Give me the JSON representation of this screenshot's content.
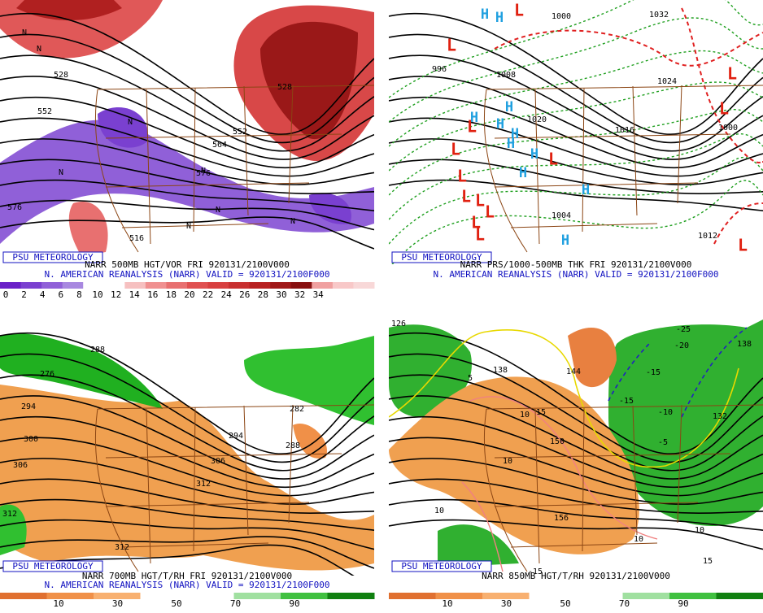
{
  "panels": [
    {
      "badge": "PSU METEOROLOGY",
      "caption": "NARR 500MB HGT/VOR FRI 920131/2100V000",
      "subcaption": "N. AMERICAN REANALYSIS (NARR) VALID = 920131/2100F000",
      "colorbar": [
        0,
        2,
        4,
        6,
        8,
        10,
        12,
        14,
        16,
        18,
        20,
        22,
        24,
        26,
        28,
        30,
        32,
        34
      ],
      "labels": [
        "528",
        "552",
        "528",
        "552",
        "564",
        "576",
        "576",
        "516",
        "N",
        "N",
        "N",
        "N",
        "N",
        "N",
        "N",
        "N"
      ]
    },
    {
      "badge": "PSU METEOROLOGY",
      "caption": "NARR PRS/1000-500MB THK FRI 920131/2100V000",
      "subcaption": "N. AMERICAN REANALYSIS (NARR) VALID = 920131/2100F000",
      "labels": [
        "1000",
        "1032",
        "1008",
        "1020",
        "1024",
        "1016",
        "1000",
        "996",
        "1004",
        "1012"
      ],
      "letters": [
        "H",
        "H",
        "H",
        "H",
        "H",
        "H",
        "H",
        "H",
        "H",
        "H",
        "H",
        "L",
        "L",
        "L",
        "L",
        "L",
        "L",
        "L",
        "L",
        "L",
        "L",
        "L",
        "L",
        "L",
        "L"
      ]
    },
    {
      "badge": "PSU METEOROLOGY",
      "caption": "NARR 700MB HGT/T/RH FRI 920131/2100V000",
      "subcaption": "N. AMERICAN REANALYSIS (NARR) VALID = 920131/2100F000",
      "colorbar": [
        10,
        30,
        50,
        70,
        90
      ],
      "labels": [
        "276",
        "288",
        "294",
        "300",
        "306",
        "312",
        "306",
        "312",
        "294",
        "288",
        "282",
        "312"
      ]
    },
    {
      "badge": "PSU METEOROLOGY",
      "caption": "NARR 850MB HGT/T/RH 920131/2100V000",
      "colorbar": [
        10,
        30,
        50,
        70,
        90
      ],
      "labels": [
        "126",
        "138",
        "144",
        "150",
        "156",
        "132",
        "138",
        "-25",
        "-20",
        "-15",
        "-15",
        "-10",
        "-5",
        "5",
        "15",
        "10",
        "10",
        "10",
        "10",
        "15",
        "-15",
        "10"
      ]
    }
  ]
}
